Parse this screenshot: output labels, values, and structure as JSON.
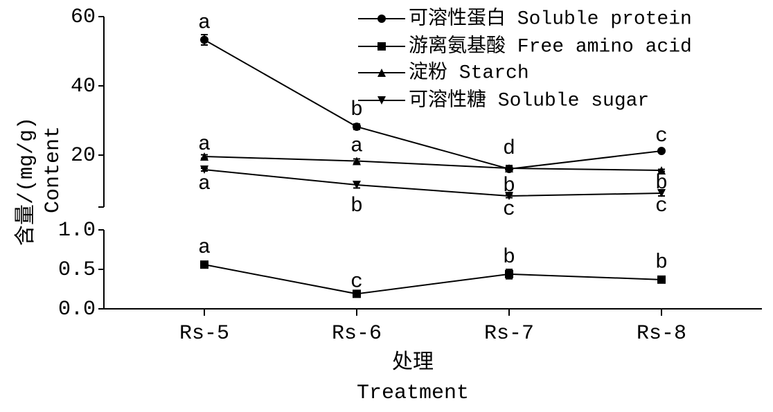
{
  "chart_data": {
    "type": "line",
    "x_label": "处理",
    "x_label_en": "Treatment",
    "y_label": "含量/(mg/g)",
    "y_label_en": "Content",
    "categories": [
      "Rs-5",
      "Rs-6",
      "Rs-7",
      "Rs-8"
    ],
    "y_segments": [
      {
        "ylim": [
          5,
          60
        ],
        "yticks": [
          20,
          40,
          60
        ]
      },
      {
        "ylim": [
          0,
          1
        ],
        "yticks": [
          {
            "value": 0,
            "label": "0.0"
          },
          {
            "value": 0.5,
            "label": "0.5"
          },
          {
            "value": 1,
            "label": "1.0"
          }
        ]
      }
    ],
    "legend": "top-right",
    "series": [
      {
        "name": "可溶性蛋白 Soluble protein",
        "color": "#000000",
        "marker": "circle",
        "segment": 0,
        "values": [
          53.3,
          28.2,
          16.0,
          21.2
        ],
        "errors": [
          1.5,
          0.8,
          0.6,
          0.4
        ],
        "letters": [
          "a",
          "b",
          "d",
          "c"
        ]
      },
      {
        "name": "游离氨基酸 Free amino acid",
        "color": "#000000",
        "marker": "square",
        "segment": 1,
        "values": [
          0.56,
          0.19,
          0.44,
          0.37
        ],
        "errors": [
          0.04,
          0.02,
          0.06,
          0.02
        ],
        "letters": [
          "a",
          "c",
          "b",
          "b"
        ]
      },
      {
        "name": "淀粉 Starch",
        "color": "#000000",
        "marker": "triangle-up",
        "segment": 0,
        "values": [
          19.6,
          18.3,
          16.2,
          15.6
        ],
        "errors": [
          0.5,
          0.6,
          0.8,
          0.3
        ],
        "letters": [
          "a",
          "a",
          "b",
          "b"
        ]
      },
      {
        "name": "可溶性糖 Soluble sugar",
        "color": "#000000",
        "marker": "triangle-down",
        "segment": 0,
        "values": [
          15.8,
          11.4,
          8.2,
          9.0
        ],
        "errors": [
          0.4,
          0.9,
          0.5,
          0.8
        ],
        "letters": [
          "a",
          "b",
          "c",
          "c"
        ]
      }
    ]
  }
}
